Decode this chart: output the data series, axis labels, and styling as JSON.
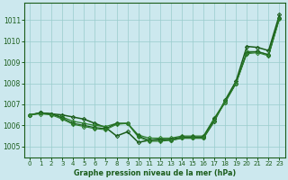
{
  "background_color": "#cce8ee",
  "grid_color": "#99cccc",
  "line_color_dark": "#1a5c1a",
  "line_color_medium": "#2d802d",
  "xlabel": "Graphe pression niveau de la mer (hPa)",
  "ylim": [
    1004.5,
    1011.8
  ],
  "xlim": [
    -0.5,
    23.5
  ],
  "yticks": [
    1005,
    1006,
    1007,
    1008,
    1009,
    1010,
    1011
  ],
  "xticks": [
    0,
    1,
    2,
    3,
    4,
    5,
    6,
    7,
    8,
    9,
    10,
    11,
    12,
    13,
    14,
    15,
    16,
    17,
    18,
    19,
    20,
    21,
    22,
    23
  ],
  "s1": [
    1006.5,
    1006.6,
    1006.55,
    1006.5,
    1006.4,
    1006.3,
    1006.1,
    1005.9,
    1005.5,
    1005.7,
    1005.2,
    1005.3,
    1005.35,
    1005.3,
    1005.4,
    1005.4,
    1005.4,
    1006.2,
    1007.2,
    1008.1,
    1009.75,
    1009.7,
    1009.55,
    1011.25
  ],
  "s2": [
    1006.5,
    1006.6,
    1006.55,
    1006.4,
    1006.2,
    1006.1,
    1006.0,
    1005.95,
    1006.1,
    1006.1,
    1005.55,
    1005.4,
    1005.4,
    1005.4,
    1005.5,
    1005.5,
    1005.5,
    1006.35,
    1007.15,
    1008.0,
    1009.5,
    1009.5,
    1009.35,
    1011.1
  ],
  "s3": [
    1006.5,
    1006.6,
    1006.55,
    1006.35,
    1006.1,
    1006.0,
    1005.9,
    1005.85,
    1006.1,
    1006.1,
    1005.5,
    1005.3,
    1005.3,
    1005.35,
    1005.45,
    1005.45,
    1005.45,
    1006.3,
    1007.1,
    1008.0,
    1009.45,
    1009.5,
    1009.35,
    1011.1
  ],
  "s4": [
    1006.5,
    1006.55,
    1006.5,
    1006.3,
    1006.05,
    1005.95,
    1005.85,
    1005.8,
    1006.05,
    1006.1,
    1005.45,
    1005.25,
    1005.25,
    1005.3,
    1005.4,
    1005.4,
    1005.4,
    1006.25,
    1007.1,
    1008.0,
    1009.4,
    1009.45,
    1009.3,
    1011.05
  ]
}
